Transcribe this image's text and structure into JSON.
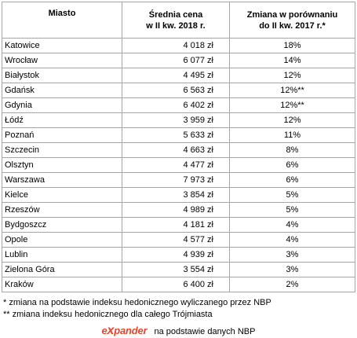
{
  "table": {
    "headers": {
      "city": "Miasto",
      "price_line1": "Średnia cena",
      "price_line2": "w II kw. 2018 r.",
      "change_line1": "Zmiana w porównaniu",
      "change_line2": "do II kw. 2017 r.*"
    },
    "rows": [
      {
        "city": "Katowice",
        "price": "4 018 zł",
        "change": "18%"
      },
      {
        "city": "Wrocław",
        "price": "6 077 zł",
        "change": "14%"
      },
      {
        "city": "Białystok",
        "price": "4 495 zł",
        "change": "12%"
      },
      {
        "city": "Gdańsk",
        "price": "6 563 zł",
        "change": "12%**"
      },
      {
        "city": "Gdynia",
        "price": "6 402 zł",
        "change": "12%**"
      },
      {
        "city": "Łódź",
        "price": "3 959 zł",
        "change": "12%"
      },
      {
        "city": "Poznań",
        "price": "5 633 zł",
        "change": "11%"
      },
      {
        "city": "Szczecin",
        "price": "4 663 zł",
        "change": "8%"
      },
      {
        "city": "Olsztyn",
        "price": "4 477 zł",
        "change": "6%"
      },
      {
        "city": "Warszawa",
        "price": "7 973 zł",
        "change": "6%"
      },
      {
        "city": "Kielce",
        "price": "3 854 zł",
        "change": "5%"
      },
      {
        "city": "Rzeszów",
        "price": "4 989 zł",
        "change": "5%"
      },
      {
        "city": "Bydgoszcz",
        "price": "4 181 zł",
        "change": "4%"
      },
      {
        "city": "Opole",
        "price": "4 577 zł",
        "change": "4%"
      },
      {
        "city": "Lublin",
        "price": "4 939 zł",
        "change": "3%"
      },
      {
        "city": "Zielona Góra",
        "price": "3 554 zł",
        "change": "3%"
      },
      {
        "city": "Kraków",
        "price": "6 400 zł",
        "change": "2%"
      }
    ]
  },
  "notes": {
    "note1": "* zmiana na podstawie indeksu hedonicznego wyliczanego przez NBP",
    "note2": "** zmiana indeksu hedonicznego dla całego Trójmiasta"
  },
  "source": {
    "logo_part1": "e",
    "logo_part2": "x",
    "logo_part3": "pander",
    "text": "na podstawie danych NBP"
  },
  "colors": {
    "logo_accent": "#e8442b",
    "border": "#a6a6a6"
  }
}
